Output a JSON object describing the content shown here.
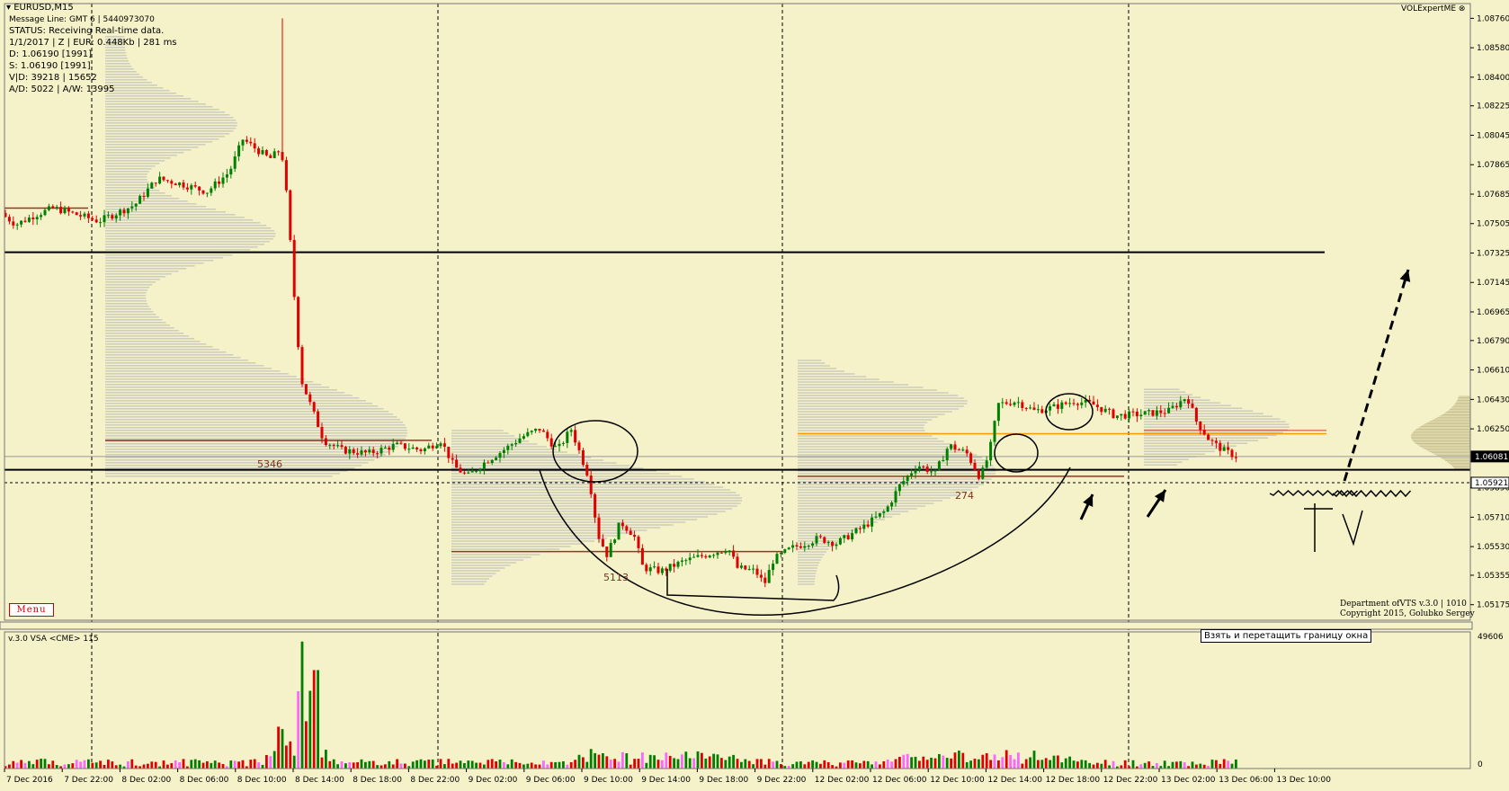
{
  "header": {
    "symbol": "EURUSD,M15",
    "lines": [
      "Message Line: GMT 6 | 5440973070",
      "STATUS:  Receiving Real-time data.",
      "1/1/2017 | Z | EUR: 0.448Kb | 281 ms",
      "D: 1.06190  [1991]",
      "S: 1.06190  [1991]",
      "V|D: 39218 | 15652",
      "A/D: 5022 | A/W: 13995"
    ],
    "brand": "VOLExpertME"
  },
  "price_axis": {
    "ticks": [
      "1.08760",
      "1.08580",
      "1.08400",
      "1.08225",
      "1.08045",
      "1.07865",
      "1.07685",
      "1.07505",
      "1.07325",
      "1.07145",
      "1.06965",
      "1.06790",
      "1.06610",
      "1.06430",
      "1.06250",
      "1.06081",
      "1.05921",
      "1.05890",
      "1.05710",
      "1.05530",
      "1.05355",
      "1.05175"
    ],
    "current_price": "1.06081",
    "marked_price": "1.05921",
    "ylim": [
      1.0508,
      1.0885
    ]
  },
  "profiles": {
    "poc1_label": "5346",
    "poc2_label": "5113",
    "poc3_label": "274"
  },
  "menu_label": "Menu",
  "tooltip": "Взять и перетащить границу окна",
  "copyright": [
    "Department ofVTS  v.3.0 | 1010",
    "Copyright 2015, Golubko Sergey"
  ],
  "indicator": {
    "title": "v.3.0 VSA <CME> 115",
    "max_label": "49606",
    "zero_label": "0"
  },
  "time_axis": [
    "7 Dec 2016",
    "7 Dec 22:00",
    "8 Dec 02:00",
    "8 Dec 06:00",
    "8 Dec 10:00",
    "8 Dec 14:00",
    "8 Dec 18:00",
    "8 Dec 22:00",
    "9 Dec 02:00",
    "9 Dec 06:00",
    "9 Dec 10:00",
    "9 Dec 14:00",
    "9 Dec 18:00",
    "9 Dec 22:00",
    "12 Dec 02:00",
    "12 Dec 06:00",
    "12 Dec 10:00",
    "12 Dec 14:00",
    "12 Dec 18:00",
    "12 Dec 22:00",
    "13 Dec 02:00",
    "13 Dec 06:00",
    "13 Dec 10:00"
  ],
  "annotation_marks": [
    "T",
    "V"
  ],
  "colors": {
    "bg": "#f5f2c9",
    "bull": "#008000",
    "bear": "#e00000",
    "profile": "#b8b8b8",
    "poc": "#a03020",
    "orange": "#ff9900"
  },
  "chart_data": {
    "type": "candlestick",
    "anchors": [
      {
        "x": 0,
        "y": 1.0757
      },
      {
        "x": 18,
        "y": 1.075
      },
      {
        "x": 40,
        "y": 1.0756
      },
      {
        "x": 60,
        "y": 1.076
      },
      {
        "x": 85,
        "y": 1.0756
      },
      {
        "x": 110,
        "y": 1.0752
      },
      {
        "x": 130,
        "y": 1.0757
      },
      {
        "x": 150,
        "y": 1.0762
      },
      {
        "x": 175,
        "y": 1.0778
      },
      {
        "x": 200,
        "y": 1.0775
      },
      {
        "x": 230,
        "y": 1.077
      },
      {
        "x": 255,
        "y": 1.0782
      },
      {
        "x": 270,
        "y": 1.0802
      },
      {
        "x": 300,
        "y": 1.079
      },
      {
        "x": 312,
        "y": 1.0796
      },
      {
        "x": 316,
        "y": 1.0785
      },
      {
        "x": 322,
        "y": 1.0745
      },
      {
        "x": 328,
        "y": 1.07
      },
      {
        "x": 335,
        "y": 1.0655
      },
      {
        "x": 345,
        "y": 1.064
      },
      {
        "x": 360,
        "y": 1.0618
      },
      {
        "x": 380,
        "y": 1.0612
      },
      {
        "x": 410,
        "y": 1.061
      },
      {
        "x": 440,
        "y": 1.0615
      },
      {
        "x": 470,
        "y": 1.0612
      },
      {
        "x": 490,
        "y": 1.0618
      },
      {
        "x": 505,
        "y": 1.0602
      },
      {
        "x": 520,
        "y": 1.0596
      },
      {
        "x": 540,
        "y": 1.0605
      },
      {
        "x": 560,
        "y": 1.0612
      },
      {
        "x": 580,
        "y": 1.062
      },
      {
        "x": 600,
        "y": 1.0625
      },
      {
        "x": 620,
        "y": 1.0612
      },
      {
        "x": 635,
        "y": 1.0625
      },
      {
        "x": 645,
        "y": 1.061
      },
      {
        "x": 655,
        "y": 1.0595
      },
      {
        "x": 665,
        "y": 1.056
      },
      {
        "x": 675,
        "y": 1.0548
      },
      {
        "x": 690,
        "y": 1.0568
      },
      {
        "x": 705,
        "y": 1.056
      },
      {
        "x": 715,
        "y": 1.054
      },
      {
        "x": 735,
        "y": 1.0538
      },
      {
        "x": 760,
        "y": 1.0544
      },
      {
        "x": 785,
        "y": 1.0548
      },
      {
        "x": 810,
        "y": 1.0552
      },
      {
        "x": 820,
        "y": 1.054
      },
      {
        "x": 840,
        "y": 1.0538
      },
      {
        "x": 850,
        "y": 1.053
      },
      {
        "x": 860,
        "y": 1.0545
      },
      {
        "x": 880,
        "y": 1.0552
      },
      {
        "x": 910,
        "y": 1.0558
      },
      {
        "x": 930,
        "y": 1.0555
      },
      {
        "x": 960,
        "y": 1.0565
      },
      {
        "x": 985,
        "y": 1.0575
      },
      {
        "x": 1000,
        "y": 1.059
      },
      {
        "x": 1020,
        "y": 1.0603
      },
      {
        "x": 1040,
        "y": 1.0598
      },
      {
        "x": 1055,
        "y": 1.0615
      },
      {
        "x": 1075,
        "y": 1.061
      },
      {
        "x": 1090,
        "y": 1.0595
      },
      {
        "x": 1100,
        "y": 1.061
      },
      {
        "x": 1110,
        "y": 1.064
      },
      {
        "x": 1130,
        "y": 1.0642
      },
      {
        "x": 1150,
        "y": 1.0636
      },
      {
        "x": 1170,
        "y": 1.0638
      },
      {
        "x": 1195,
        "y": 1.0642
      },
      {
        "x": 1215,
        "y": 1.064
      },
      {
        "x": 1240,
        "y": 1.0633
      },
      {
        "x": 1270,
        "y": 1.0634
      },
      {
        "x": 1300,
        "y": 1.0636
      },
      {
        "x": 1320,
        "y": 1.0645
      },
      {
        "x": 1330,
        "y": 1.063
      },
      {
        "x": 1345,
        "y": 1.0618
      },
      {
        "x": 1360,
        "y": 1.0612
      },
      {
        "x": 1375,
        "y": 1.0608
      }
    ]
  }
}
